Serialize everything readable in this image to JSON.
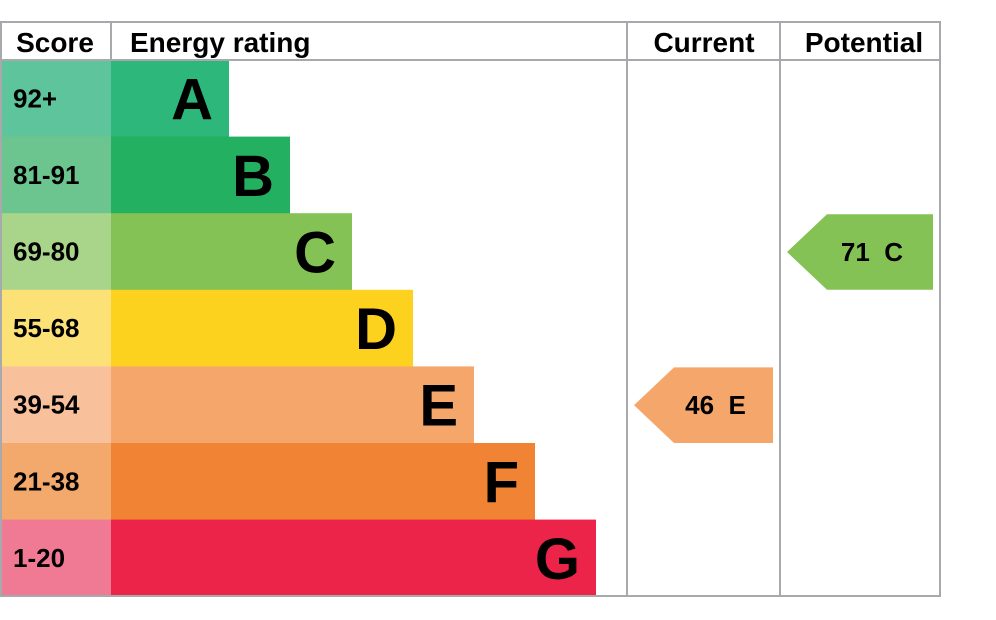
{
  "chart_data": {
    "type": "bar",
    "headers": {
      "score": "Score",
      "energy_rating": "Energy rating",
      "current": "Current",
      "potential": "Potential"
    },
    "bands": [
      {
        "letter": "A",
        "range": "92+",
        "color": "#2db77b",
        "score_color": "#5ec49c"
      },
      {
        "letter": "B",
        "range": "81-91",
        "color": "#23b161",
        "score_color": "#6cc58f"
      },
      {
        "letter": "C",
        "range": "69-80",
        "color": "#85c256",
        "score_color": "#a9d58b"
      },
      {
        "letter": "D",
        "range": "55-68",
        "color": "#fcd21e",
        "score_color": "#fce276"
      },
      {
        "letter": "E",
        "range": "39-54",
        "color": "#f5a66b",
        "score_color": "#f8c19c"
      },
      {
        "letter": "F",
        "range": "21-38",
        "color": "#f08334",
        "score_color": "#f3a96b"
      },
      {
        "letter": "G",
        "range": "1-20",
        "color": "#ec2449",
        "score_color": "#f07a93"
      }
    ],
    "current": {
      "value": 46,
      "band": "E",
      "label": "46  E",
      "color": "#f5a66b"
    },
    "potential": {
      "value": 71,
      "band": "C",
      "label": "71  C",
      "color": "#85c256"
    }
  }
}
